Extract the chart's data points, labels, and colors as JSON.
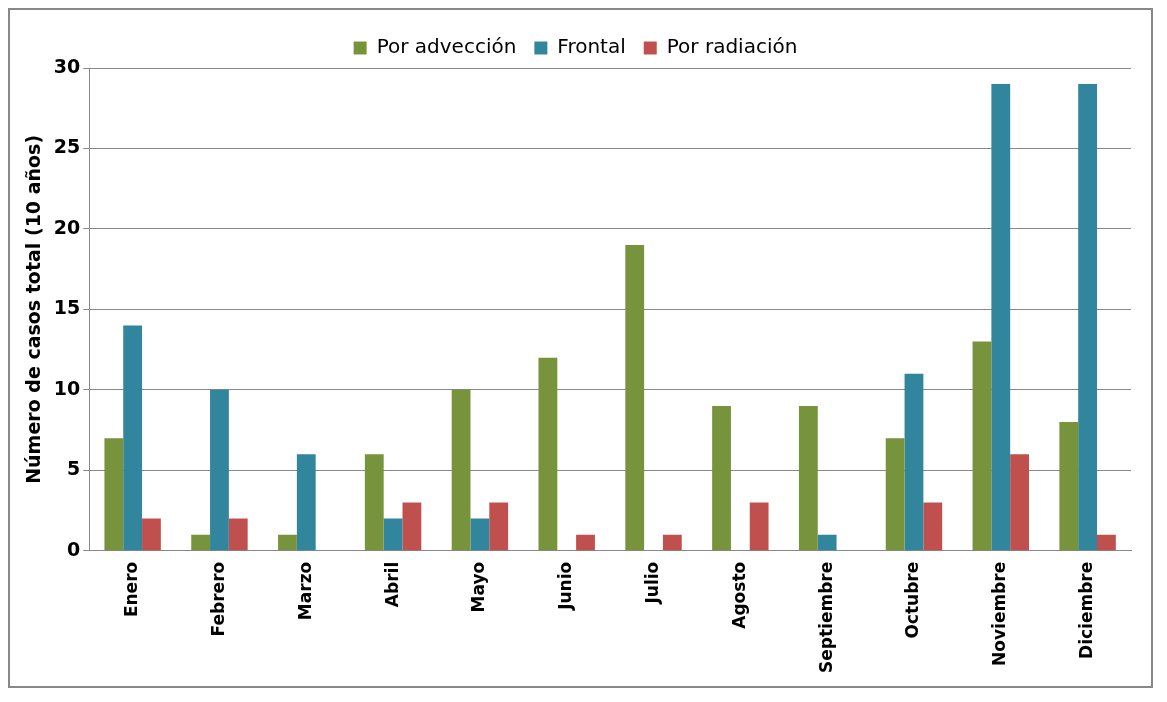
{
  "chart_data": {
    "type": "bar",
    "ylabel": "Número de casos total (10 años)",
    "categories": [
      "Enero",
      "Febrero",
      "Marzo",
      "Abril",
      "Mayo",
      "Junio",
      "Julio",
      "Agosto",
      "Septiembre",
      "Octubre",
      "Noviembre",
      "Diciembre"
    ],
    "series": [
      {
        "name": "Por advección",
        "color": "#77933c",
        "values": [
          7,
          1,
          1,
          6,
          10,
          12,
          19,
          9,
          9,
          7,
          13,
          8
        ]
      },
      {
        "name": "Frontal",
        "color": "#31859c",
        "values": [
          14,
          10,
          6,
          2,
          2,
          0,
          0,
          0,
          1,
          11,
          29,
          29
        ]
      },
      {
        "name": "Por radiación",
        "color": "#c0504d",
        "values": [
          2,
          2,
          0,
          3,
          3,
          1,
          1,
          3,
          0,
          3,
          6,
          1
        ]
      }
    ],
    "ylim": [
      0,
      30
    ],
    "yticks": [
      0,
      5,
      10,
      15,
      20,
      25,
      30
    ],
    "grid": "y",
    "legend": "top"
  }
}
